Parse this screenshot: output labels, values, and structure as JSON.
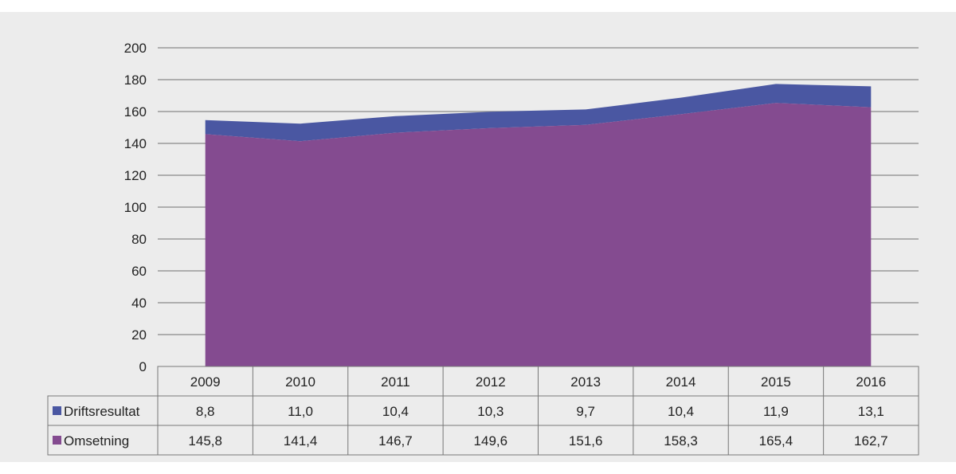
{
  "chart_data": {
    "type": "area",
    "stacked": true,
    "categories": [
      "2009",
      "2010",
      "2011",
      "2012",
      "2013",
      "2014",
      "2015",
      "2016"
    ],
    "series": [
      {
        "name": "Omsetning",
        "color": "#844b90",
        "values": [
          145.8,
          141.4,
          146.7,
          149.6,
          151.6,
          158.3,
          165.4,
          162.7
        ],
        "labels": [
          "145,8",
          "141,4",
          "146,7",
          "149,6",
          "151,6",
          "158,3",
          "165,4",
          "162,7"
        ]
      },
      {
        "name": "Driftsresultat",
        "color": "#4a57a2",
        "values": [
          8.8,
          11.0,
          10.4,
          10.3,
          9.7,
          10.4,
          11.9,
          13.1
        ],
        "labels": [
          "8,8",
          "11,0",
          "10,4",
          "10,3",
          "9,7",
          "10,4",
          "11,9",
          "13,1"
        ]
      }
    ],
    "ylim": [
      0,
      200
    ],
    "yticks": [
      "0",
      "20",
      "40",
      "60",
      "80",
      "100",
      "120",
      "140",
      "160",
      "180",
      "200"
    ],
    "grid": true,
    "legend": "data-table"
  }
}
